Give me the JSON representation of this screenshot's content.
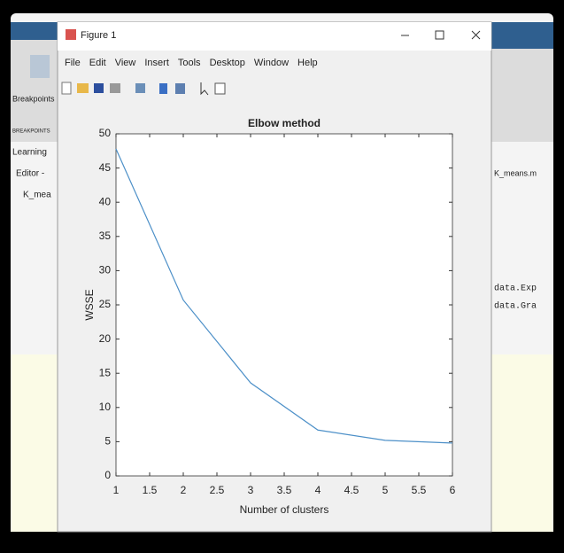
{
  "window": {
    "title": "Figure 1",
    "menu": [
      "File",
      "Edit",
      "View",
      "Insert",
      "Tools",
      "Desktop",
      "Window",
      "Help"
    ]
  },
  "background": {
    "left": [
      "Breakpoints",
      "BREAKPOINTS",
      "Learning",
      "Editor -",
      "K_mea"
    ],
    "right": [
      "K_means.m",
      "data.Exp",
      "data.Gra"
    ]
  },
  "chart_data": {
    "type": "line",
    "title": "Elbow method",
    "x_label": "Number of clusters",
    "y_label": "WSSE",
    "x": [
      1,
      2,
      3,
      4,
      5,
      6
    ],
    "series": [
      {
        "name": "WSSE",
        "color": "#4d90c8",
        "values": [
          47.8,
          25.7,
          13.6,
          6.7,
          5.2,
          4.8
        ]
      }
    ],
    "xlim": [
      1,
      6
    ],
    "xticks": [
      1,
      1.5,
      2,
      2.5,
      3,
      3.5,
      4,
      4.5,
      5,
      5.5,
      6
    ],
    "ylim": [
      0,
      50
    ],
    "yticks": [
      0,
      5,
      10,
      15,
      20,
      25,
      30,
      35,
      40,
      45,
      50
    ],
    "grid": false
  }
}
